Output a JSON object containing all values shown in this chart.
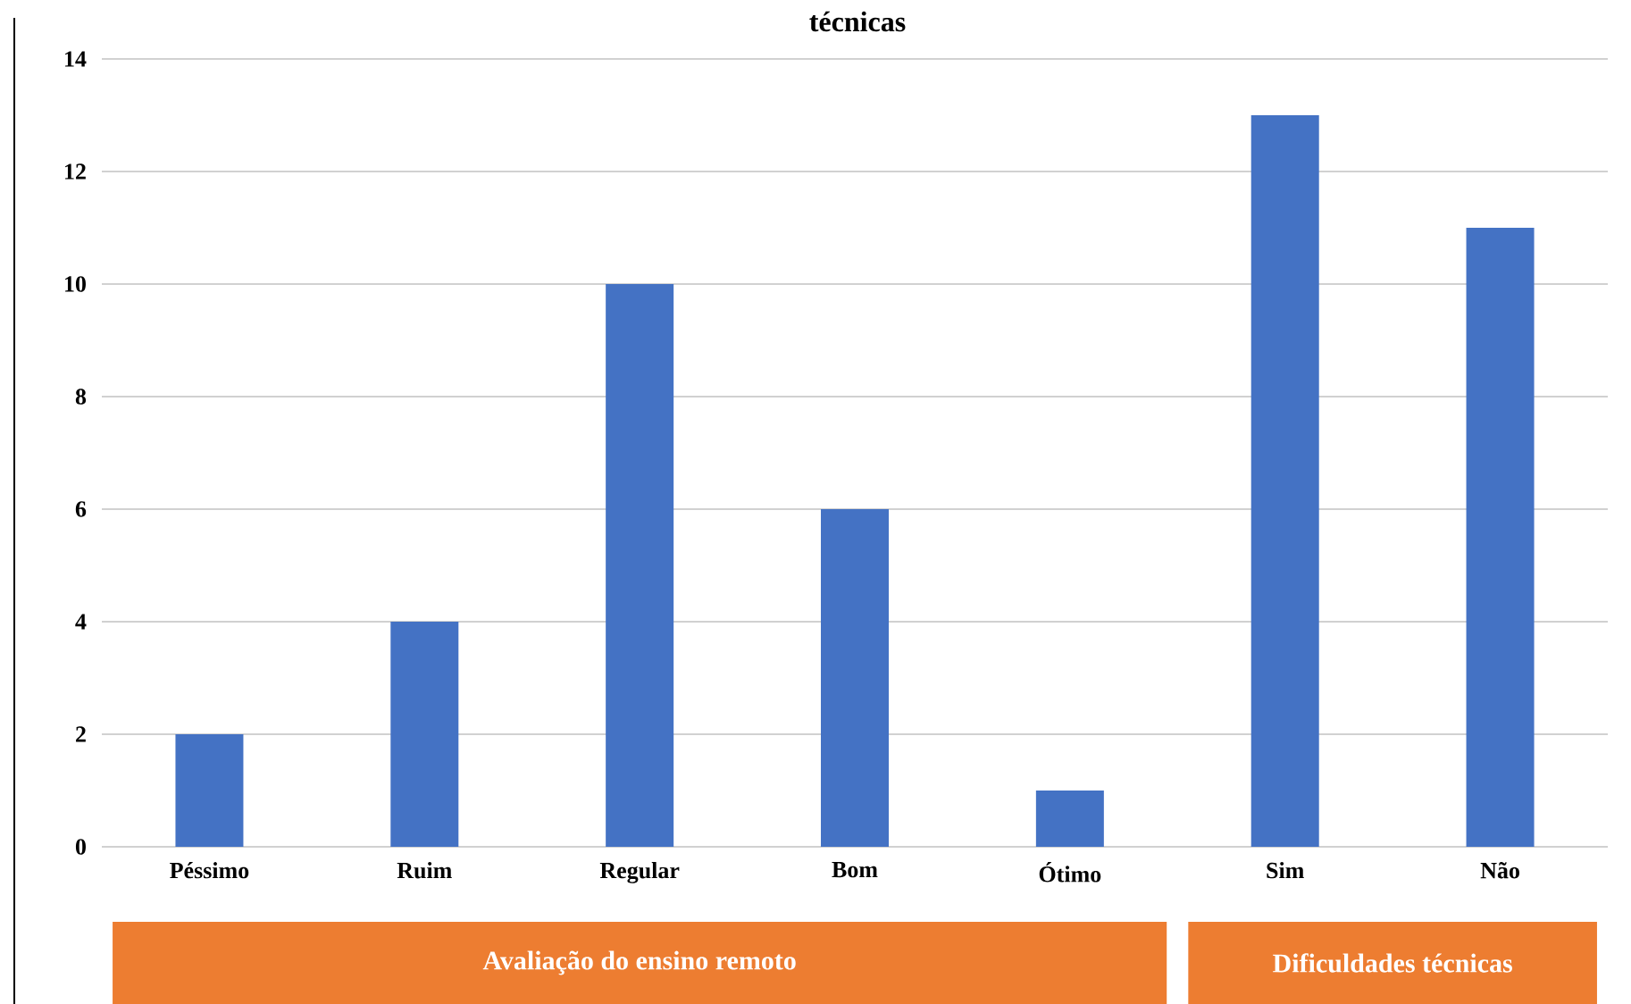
{
  "chart_data": {
    "type": "bar",
    "title": "técnicas",
    "categories": [
      "Péssimo",
      "Ruim",
      "Regular",
      "Bom",
      "Ótimo",
      "Sim",
      "Não"
    ],
    "values": [
      2,
      4,
      10,
      6,
      1,
      13,
      11
    ],
    "color": "#4472c4",
    "ylim": [
      0,
      14
    ],
    "yticks": [
      0,
      2,
      4,
      6,
      8,
      10,
      12,
      14
    ],
    "grid": "y",
    "annotations": [
      "Avaliação do ensino remoto",
      "Dificuldades técnicas"
    ]
  }
}
